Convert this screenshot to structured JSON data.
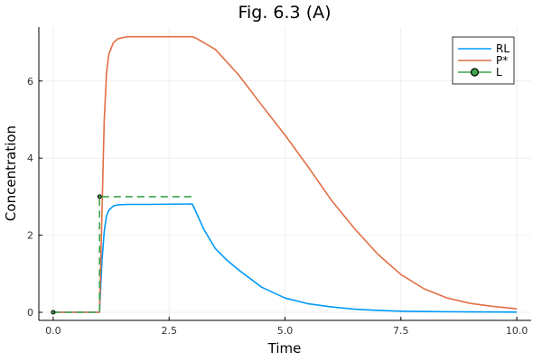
{
  "chart_data": {
    "type": "line",
    "title": "Fig. 6.3 (A)",
    "xlabel": "Time",
    "ylabel": "Concentration",
    "xlim": [
      -0.31,
      10.31
    ],
    "ylim": [
      -0.21,
      7.4
    ],
    "xticks": [
      0,
      2.5,
      5,
      7.5,
      10
    ],
    "xtick_labels": [
      "0.0",
      "2.5",
      "5.0",
      "7.5",
      "10.0"
    ],
    "yticks": [
      0,
      2,
      4,
      6
    ],
    "ytick_labels": [
      "0",
      "2",
      "4",
      "6"
    ],
    "grid": true,
    "legend_position": "top-right",
    "series": [
      {
        "name": "RL",
        "color": "#009af9",
        "style": "solid",
        "x": [
          0,
          1,
          1.05,
          1.1,
          1.15,
          1.2,
          1.3,
          1.4,
          1.6,
          2,
          3,
          3.25,
          3.5,
          3.75,
          4,
          4.5,
          5,
          5.5,
          6,
          6.5,
          7,
          7.5,
          8,
          9,
          10
        ],
        "y": [
          0,
          0,
          1.3,
          2.1,
          2.5,
          2.65,
          2.76,
          2.79,
          2.8,
          2.8,
          2.81,
          2.15,
          1.65,
          1.35,
          1.1,
          0.65,
          0.37,
          0.22,
          0.14,
          0.08,
          0.05,
          0.03,
          0.02,
          0.01,
          0.005
        ]
      },
      {
        "name": "P*",
        "color": "#e26f46",
        "style": "solid",
        "x": [
          0,
          1,
          1.05,
          1.1,
          1.15,
          1.2,
          1.3,
          1.4,
          1.6,
          2,
          3,
          3.1,
          3.5,
          4,
          4.5,
          5,
          5.5,
          6,
          6.5,
          7,
          7.5,
          8,
          8.5,
          9,
          9.5,
          10
        ],
        "y": [
          0,
          0,
          2.5,
          5.0,
          6.2,
          6.7,
          7.0,
          7.1,
          7.15,
          7.15,
          7.15,
          7.1,
          6.82,
          6.16,
          5.37,
          4.6,
          3.77,
          2.91,
          2.17,
          1.51,
          0.98,
          0.61,
          0.37,
          0.23,
          0.15,
          0.09
        ]
      },
      {
        "name": "L",
        "color": "#3da44d",
        "style": "dashed",
        "marker": "circle",
        "x": [
          0,
          1,
          1,
          3
        ],
        "y": [
          0,
          0,
          3,
          3
        ],
        "marker_points": [
          [
            0,
            0
          ],
          [
            1,
            3
          ]
        ]
      }
    ]
  }
}
